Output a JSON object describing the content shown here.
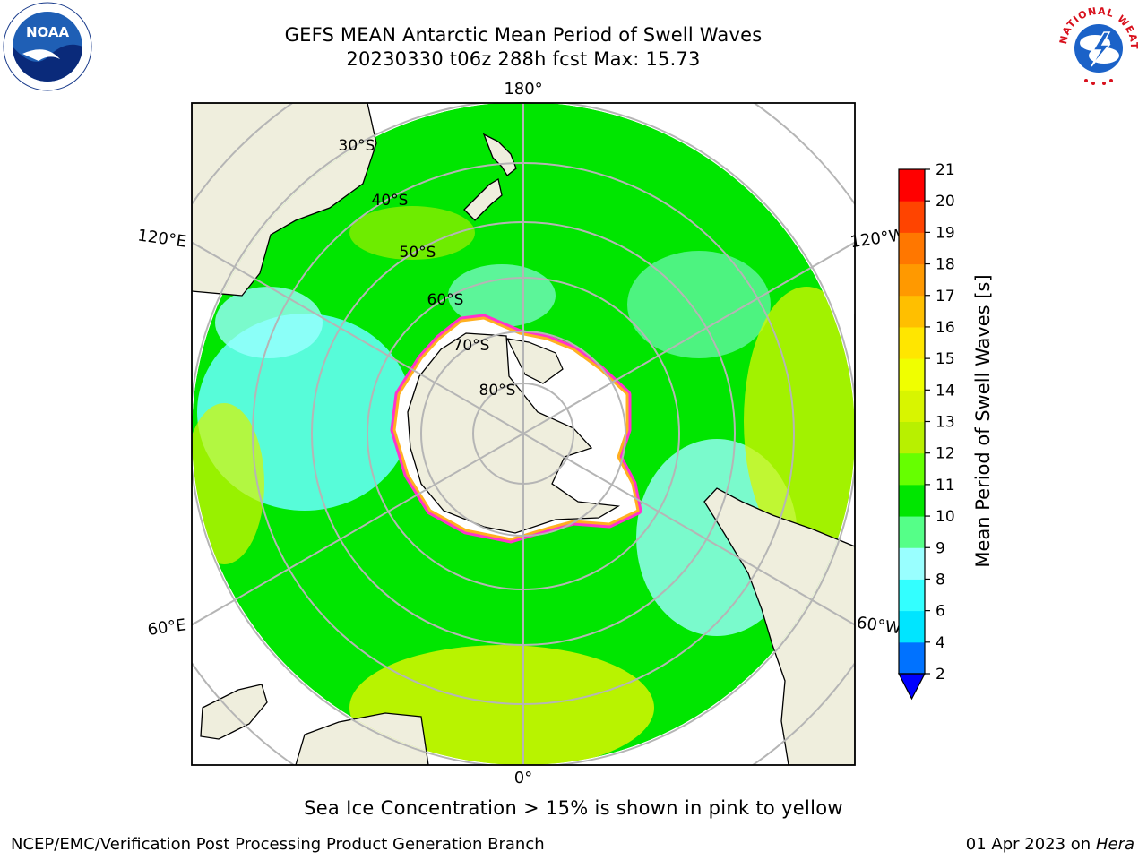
{
  "title": {
    "line1": "GEFS MEAN Antarctic Mean Period of Swell Waves",
    "line2": "20230330 t06z 288h fcst   Max: 15.73"
  },
  "logos": {
    "left": "noaa-logo",
    "right": "national-weather-service-logo",
    "noaa_text": "NOAA",
    "nws_text": "NATIONAL WEATHER SERVICE"
  },
  "map": {
    "projection": "south-polar-stereographic",
    "central_longitude_top": "180°",
    "longitude_labels": {
      "top": "180°",
      "bottom": "0°",
      "upper_left": "120°E",
      "lower_left": "60°E",
      "upper_right": "120°W",
      "lower_right": "60°W"
    },
    "latitude_labels": [
      "30°S",
      "40°S",
      "50°S",
      "60°S",
      "70°S",
      "80°S"
    ],
    "land_color": "#efeedd",
    "ice_color": "#ffffff",
    "sea_ice_edge_colors": [
      "#ff33cc",
      "#ffb020"
    ]
  },
  "colorbar": {
    "label": "Mean Period of Swell Waves [s]",
    "ticks": [
      "2",
      "4",
      "6",
      "8",
      "9",
      "10",
      "11",
      "12",
      "13",
      "14",
      "15",
      "16",
      "17",
      "18",
      "19",
      "20",
      "21"
    ],
    "colors": [
      "#0072ff",
      "#00e5ff",
      "#33ffff",
      "#99ffff",
      "#55ff88",
      "#00e600",
      "#66ff00",
      "#b8f000",
      "#d8f500",
      "#f0ff00",
      "#ffe600",
      "#ffbf00",
      "#ff9900",
      "#ff7700",
      "#ff4400",
      "#ff0000"
    ],
    "extend_min_color": "#0000ff"
  },
  "caption": "Sea Ice Concentration > 15% is shown in pink to yellow",
  "footer": {
    "left": "NCEP/EMC/Verification Post Processing Product Generation Branch",
    "date": "01 Apr 2023 on ",
    "host": "Hera"
  }
}
